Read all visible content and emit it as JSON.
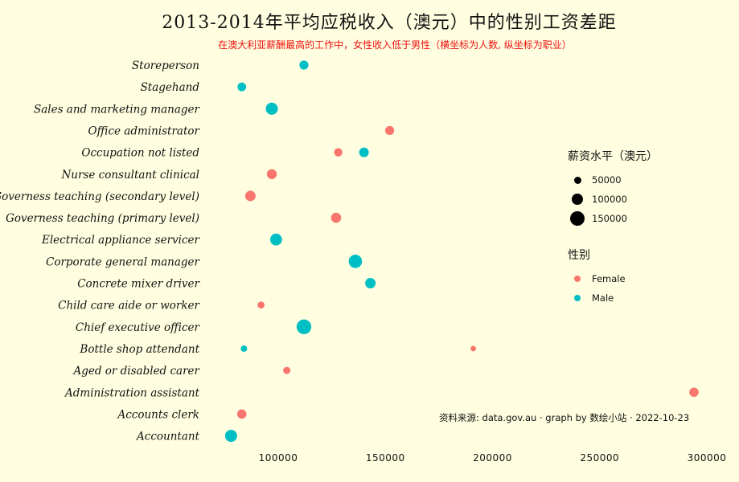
{
  "title": "2013-2014年平均应税收入（澳元）中的性别工资差距",
  "subtitle": "在澳大利亚薪酬最高的工作中，女性收入低于男性（横坐标为人数, 纵坐标为职业）",
  "caption": "资料来源: data.gov.au · graph by 数绘小站 · 2022-10-23",
  "legend": {
    "size_title": "薪资水平（澳元）",
    "size_items": [
      "50000",
      "100000",
      "150000"
    ],
    "color_title": "性别",
    "color_items": [
      {
        "label": "Female",
        "color": "#f8766d"
      },
      {
        "label": "Male",
        "color": "#00bfc4"
      }
    ]
  },
  "chart_data": {
    "type": "scatter",
    "title": "2013-2014年平均应税收入（澳元）中的性别工资差距",
    "subtitle": "在澳大利亚薪酬最高的工作中，女性收入低于男性（横坐标为人数, 纵坐标为职业）",
    "xlabel": "",
    "ylabel": "",
    "x_ticks": [
      100000,
      150000,
      200000,
      250000,
      300000
    ],
    "xlim": [
      65000,
      310000
    ],
    "categories": [
      "Storeperson",
      "Stagehand",
      "Sales and marketing manager",
      "Office administrator",
      "Occupation not listed",
      "Nurse consultant  clinical",
      "Governess  teaching (secondary level)",
      "Governess  teaching (primary level)",
      "Electrical appliance servicer",
      "Corporate general manager",
      "Concrete mixer driver",
      "Child care aide or worker",
      "Chief executive officer",
      "Bottle shop attendant",
      "Aged or disabled carer",
      "Administration assistant",
      "Accounts clerk",
      "Accountant"
    ],
    "grid": false,
    "legend_position": "right",
    "series": [
      {
        "name": "Female",
        "color": "#f8766d",
        "points": [
          {
            "category": "Office administrator",
            "x": 152000,
            "salary": 75000
          },
          {
            "category": "Occupation not listed",
            "x": 128000,
            "salary": 65000
          },
          {
            "category": "Nurse consultant  clinical",
            "x": 97000,
            "salary": 90000
          },
          {
            "category": "Governess  teaching (secondary level)",
            "x": 87000,
            "salary": 100000
          },
          {
            "category": "Governess  teaching (primary level)",
            "x": 127000,
            "salary": 95000
          },
          {
            "category": "Child care aide or worker",
            "x": 92000,
            "salary": 45000
          },
          {
            "category": "Bottle shop attendant",
            "x": 191000,
            "salary": 28000
          },
          {
            "category": "Aged or disabled carer",
            "x": 104000,
            "salary": 48000
          },
          {
            "category": "Administration assistant",
            "x": 294000,
            "salary": 80000
          },
          {
            "category": "Accounts clerk",
            "x": 83000,
            "salary": 80000
          }
        ]
      },
      {
        "name": "Male",
        "color": "#00bfc4",
        "points": [
          {
            "category": "Storeperson",
            "x": 112000,
            "salary": 75000
          },
          {
            "category": "Stagehand",
            "x": 83000,
            "salary": 70000
          },
          {
            "category": "Sales and marketing manager",
            "x": 97000,
            "salary": 135000
          },
          {
            "category": "Occupation not listed",
            "x": 140000,
            "salary": 85000
          },
          {
            "category": "Electrical appliance servicer",
            "x": 99000,
            "salary": 130000
          },
          {
            "category": "Corporate general manager",
            "x": 136000,
            "salary": 165000
          },
          {
            "category": "Concrete mixer driver",
            "x": 143000,
            "salary": 100000
          },
          {
            "category": "Chief executive officer",
            "x": 112000,
            "salary": 200000
          },
          {
            "category": "Bottle shop attendant",
            "x": 84000,
            "salary": 38000
          },
          {
            "category": "Accountant",
            "x": 78000,
            "salary": 135000
          }
        ]
      }
    ]
  }
}
